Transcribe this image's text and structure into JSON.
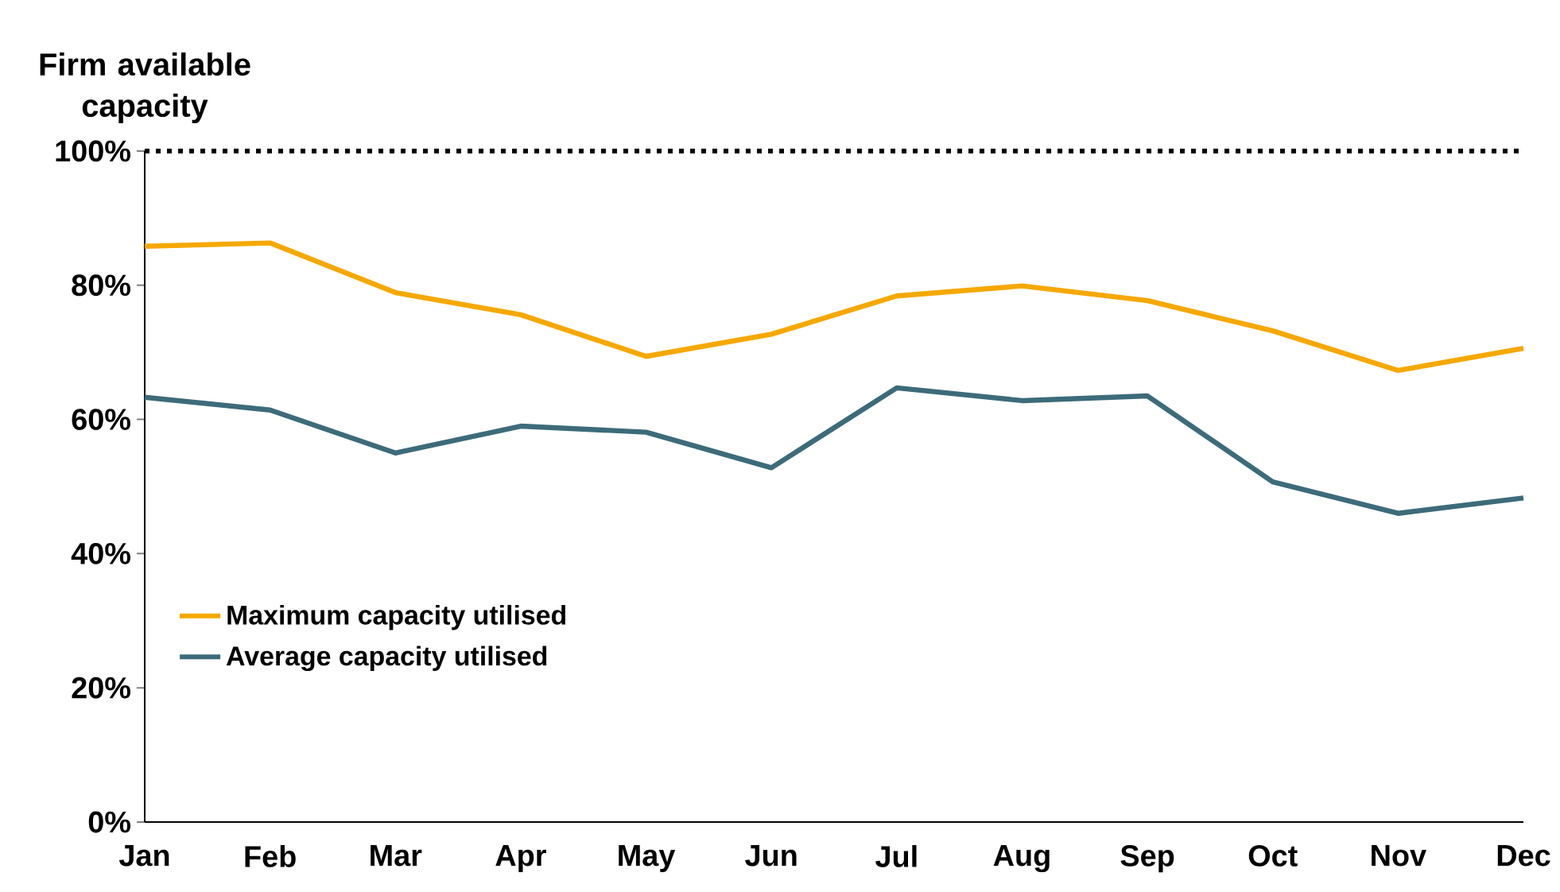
{
  "chart_data": {
    "type": "line",
    "ylabel": "Firm available capacity",
    "categories": [
      "Jan",
      "Feb",
      "Mar",
      "Apr",
      "May",
      "Jun",
      "Jul",
      "Aug",
      "Sep",
      "Oct",
      "Nov",
      "Dec"
    ],
    "series": [
      {
        "name": "Maximum capacity utilised",
        "color": "#f5a800",
        "values": [
          85.8,
          86.3,
          78.9,
          75.6,
          69.4,
          72.7,
          78.4,
          79.9,
          77.7,
          73.2,
          67.3,
          70.6
        ]
      },
      {
        "name": "Average capacity utilised",
        "color": "#3d6b7a",
        "values": [
          63.3,
          61.4,
          55.0,
          59.0,
          58.1,
          52.8,
          64.7,
          62.8,
          63.5,
          50.7,
          46.0,
          48.3
        ]
      }
    ],
    "ylim": [
      0,
      100
    ],
    "yticks": [
      {
        "value": 0,
        "label": "0%"
      },
      {
        "value": 20,
        "label": "20%"
      },
      {
        "value": 40,
        "label": "40%"
      },
      {
        "value": 60,
        "label": "60%"
      },
      {
        "value": 80,
        "label": "80%"
      },
      {
        "value": 100,
        "label": "100%"
      }
    ],
    "ref_lines": [
      {
        "axis": "y",
        "value": 100,
        "color": "#000000",
        "line_style": "dotted"
      }
    ],
    "legend": "bottom left"
  }
}
